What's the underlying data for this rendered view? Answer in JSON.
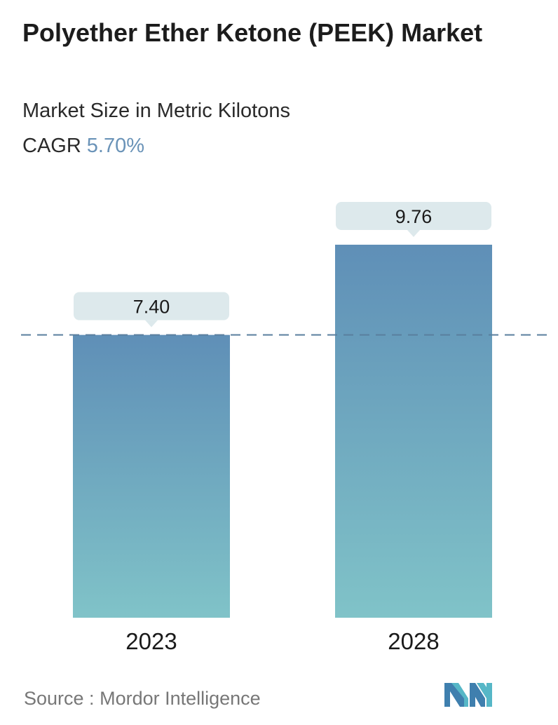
{
  "header": {
    "title": "Polyether Ether Ketone (PEEK) Market",
    "subtitle": "Market Size in Metric Kilotons",
    "cagr_label": "CAGR",
    "cagr_value": "5.70%"
  },
  "chart_data": {
    "type": "bar",
    "categories": [
      "2023",
      "2028"
    ],
    "values": [
      7.4,
      9.76
    ],
    "value_labels": [
      "7.40",
      "9.76"
    ],
    "title": "Polyether Ether Ketone (PEEK) Market",
    "subtitle": "Market Size in Metric Kilotons",
    "xlabel": "",
    "ylabel": "",
    "ylim": [
      0,
      9.76
    ],
    "grid": false,
    "reference_line": 7.4
  },
  "footer": {
    "source_label": "Source :",
    "source_value": "Mordor Intelligence"
  },
  "colors": {
    "bar_top": "#5f8fb7",
    "bar_bottom": "#80c3c8",
    "label_bg": "#dde9ec",
    "dash_line": "#5a7f9e",
    "cagr": "#6a93b8"
  },
  "icons": {
    "logo": "mordor-intelligence-logo-icon"
  }
}
